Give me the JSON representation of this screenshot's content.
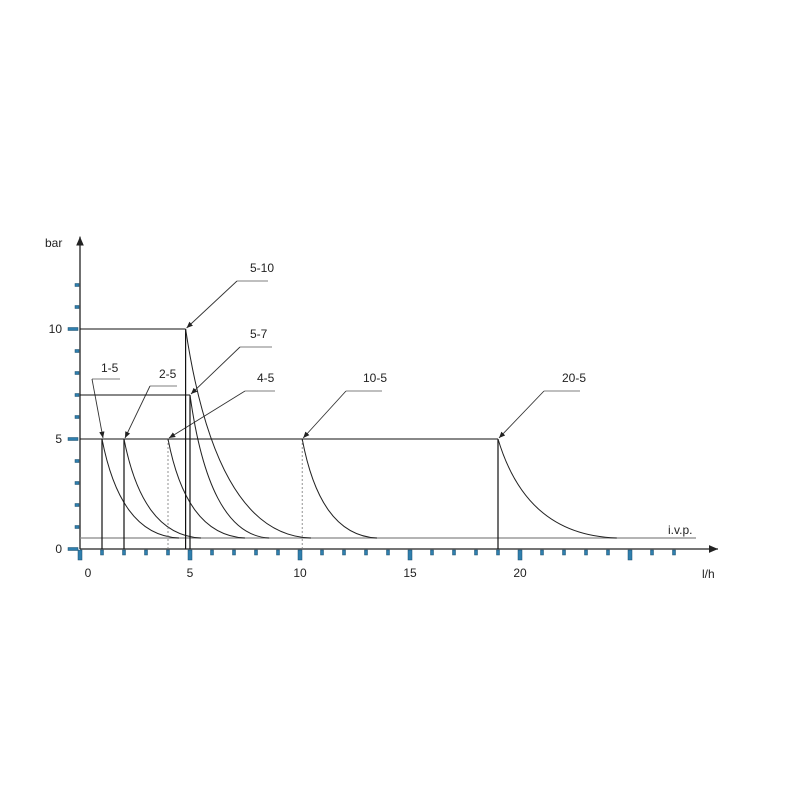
{
  "chart_data": {
    "type": "line",
    "xlabel": "l/h",
    "ylabel": "bar",
    "xlim": [
      0,
      29
    ],
    "ylim": [
      0,
      14.2
    ],
    "x_ticks": [
      0,
      5,
      10,
      15,
      20
    ],
    "y_ticks": [
      0,
      5,
      10
    ],
    "grid": false,
    "tick_color": "#2f7fae",
    "reference_line": {
      "label": "i.v.p.",
      "y": 0.5,
      "x_end": 28,
      "color": "#888888"
    },
    "series": [
      {
        "name": "1-5",
        "start": [
          1,
          5
        ],
        "end_x": 4.5,
        "drop_line": "solid"
      },
      {
        "name": "2-5",
        "start": [
          2,
          5
        ],
        "end_x": 5.5,
        "drop_line": "solid"
      },
      {
        "name": "4-5",
        "start": [
          4,
          5
        ],
        "end_x": 7.5,
        "drop_line": "dotted"
      },
      {
        "name": "5-10",
        "start": [
          4.8,
          10
        ],
        "end_x": 10.5,
        "drop_line": "solid"
      },
      {
        "name": "5-7",
        "start": [
          5,
          7
        ],
        "end_x": 8.6,
        "drop_line": "solid"
      },
      {
        "name": "10-5",
        "start": [
          10.1,
          5
        ],
        "end_x": 13.5,
        "drop_line": "dotted"
      },
      {
        "name": "20-5",
        "start": [
          19,
          5
        ],
        "end_x": 24.4,
        "drop_line": "solid"
      }
    ]
  }
}
